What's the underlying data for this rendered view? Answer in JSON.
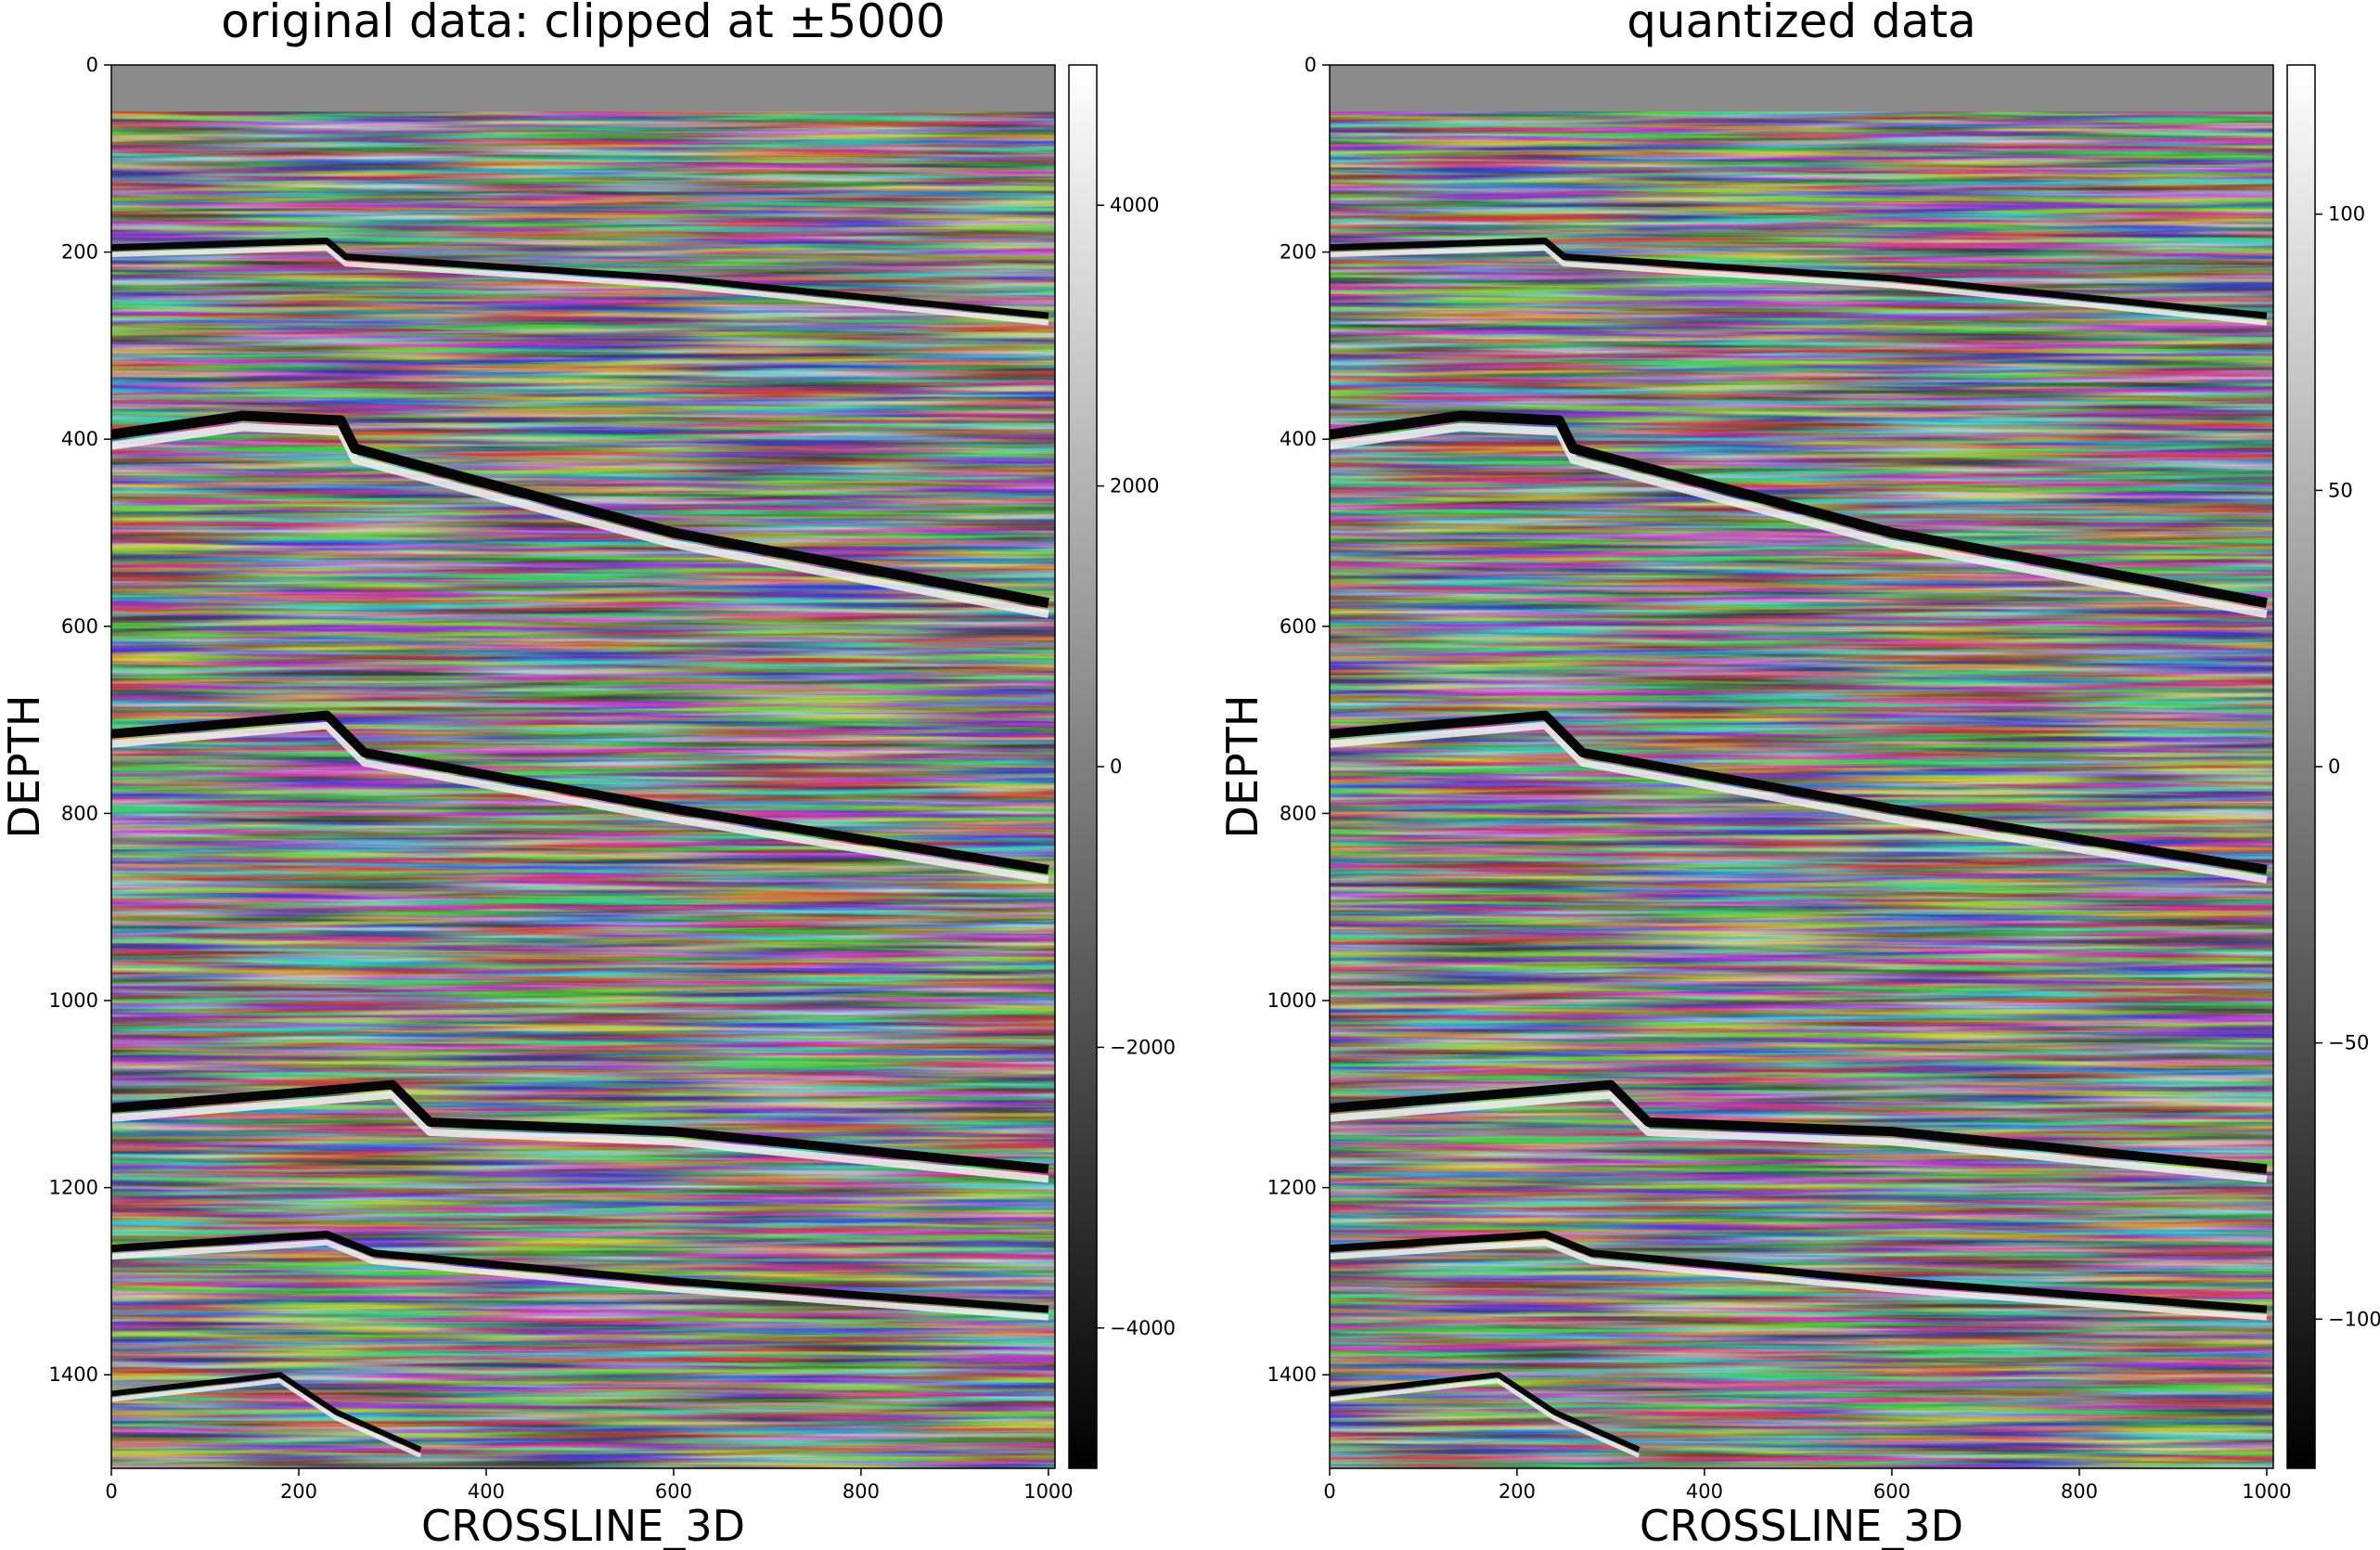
{
  "chart_data": [
    {
      "type": "heatmap",
      "title": "original data: clipped at ±5000",
      "xlabel": "CROSSLINE_3D",
      "ylabel": "DEPTH",
      "xlim": [
        0,
        1007
      ],
      "ylim": [
        1500,
        0
      ],
      "x_ticks": [
        "0",
        "200",
        "400",
        "600",
        "800",
        "1000"
      ],
      "y_ticks": [
        "0",
        "200",
        "400",
        "600",
        "800",
        "1000",
        "1200",
        "1400"
      ],
      "colormap": "gray",
      "colorbar": {
        "range": [
          -5000,
          5000
        ],
        "ticks": [
          {
            "label": "4000",
            "value": 4000
          },
          {
            "label": "2000",
            "value": 2000
          },
          {
            "label": "0",
            "value": 0
          },
          {
            "label": "−2000",
            "value": -2000
          },
          {
            "label": "−4000",
            "value": -4000
          }
        ]
      },
      "reflectors": [
        {
          "points": [
            [
              0,
              195
            ],
            [
              230,
              188
            ],
            [
              250,
              205
            ],
            [
              600,
              228
            ],
            [
              1000,
              268
            ]
          ],
          "polarity": -1,
          "width": 7
        },
        {
          "points": [
            [
              0,
              395
            ],
            [
              140,
              375
            ],
            [
              245,
              380
            ],
            [
              260,
              410
            ],
            [
              600,
              500
            ],
            [
              1000,
              575
            ]
          ],
          "polarity": -1,
          "width": 11
        },
        {
          "points": [
            [
              0,
              715
            ],
            [
              230,
              695
            ],
            [
              270,
              735
            ],
            [
              600,
              795
            ],
            [
              1000,
              860
            ]
          ],
          "polarity": -1,
          "width": 10
        },
        {
          "points": [
            [
              0,
              1115
            ],
            [
              300,
              1090
            ],
            [
              340,
              1130
            ],
            [
              600,
              1140
            ],
            [
              1000,
              1180
            ]
          ],
          "polarity": -1,
          "width": 10
        },
        {
          "points": [
            [
              0,
              1265
            ],
            [
              230,
              1250
            ],
            [
              280,
              1270
            ],
            [
              600,
              1300
            ],
            [
              1000,
              1330
            ]
          ],
          "polarity": -1,
          "width": 8
        },
        {
          "points": [
            [
              0,
              1420
            ],
            [
              180,
              1400
            ],
            [
              240,
              1440
            ],
            [
              330,
              1480
            ]
          ],
          "polarity": -1,
          "width": 6
        }
      ]
    },
    {
      "type": "heatmap",
      "title": "quantized data",
      "xlabel": "CROSSLINE_3D",
      "ylabel": "DEPTH",
      "xlim": [
        0,
        1007
      ],
      "ylim": [
        1500,
        0
      ],
      "x_ticks": [
        "0",
        "200",
        "400",
        "600",
        "800",
        "1000"
      ],
      "y_ticks": [
        "0",
        "200",
        "400",
        "600",
        "800",
        "1000",
        "1200",
        "1400"
      ],
      "colormap": "gray",
      "colorbar": {
        "range": [
          -127,
          127
        ],
        "ticks": [
          {
            "label": "100",
            "value": 100
          },
          {
            "label": "50",
            "value": 50
          },
          {
            "label": "0",
            "value": 0
          },
          {
            "label": "−50",
            "value": -50
          },
          {
            "label": "−100",
            "value": -100
          }
        ]
      },
      "reflectors": [
        {
          "points": [
            [
              0,
              195
            ],
            [
              230,
              188
            ],
            [
              250,
              205
            ],
            [
              600,
              228
            ],
            [
              1000,
              268
            ]
          ],
          "polarity": -1,
          "width": 7
        },
        {
          "points": [
            [
              0,
              395
            ],
            [
              140,
              375
            ],
            [
              245,
              380
            ],
            [
              260,
              410
            ],
            [
              600,
              500
            ],
            [
              1000,
              575
            ]
          ],
          "polarity": -1,
          "width": 11
        },
        {
          "points": [
            [
              0,
              715
            ],
            [
              230,
              695
            ],
            [
              270,
              735
            ],
            [
              600,
              795
            ],
            [
              1000,
              860
            ]
          ],
          "polarity": -1,
          "width": 10
        },
        {
          "points": [
            [
              0,
              1115
            ],
            [
              300,
              1090
            ],
            [
              340,
              1130
            ],
            [
              600,
              1140
            ],
            [
              1000,
              1180
            ]
          ],
          "polarity": -1,
          "width": 10
        },
        {
          "points": [
            [
              0,
              1265
            ],
            [
              230,
              1250
            ],
            [
              280,
              1270
            ],
            [
              600,
              1300
            ],
            [
              1000,
              1330
            ]
          ],
          "polarity": -1,
          "width": 8
        },
        {
          "points": [
            [
              0,
              1420
            ],
            [
              180,
              1400
            ],
            [
              240,
              1440
            ],
            [
              330,
              1480
            ]
          ],
          "polarity": -1,
          "width": 6
        }
      ]
    }
  ]
}
